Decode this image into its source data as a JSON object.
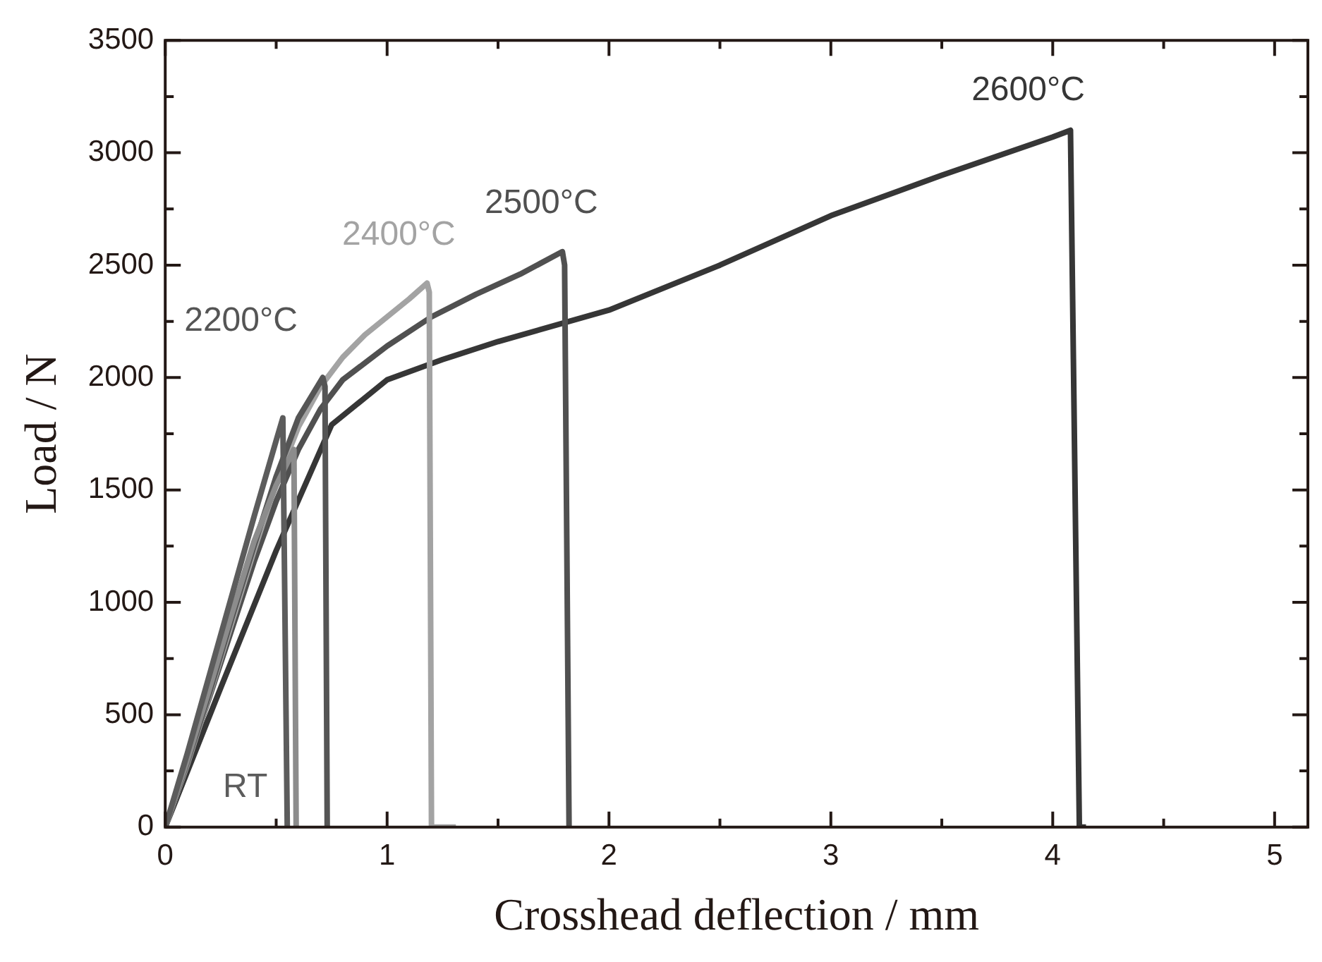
{
  "chart_data": {
    "type": "line",
    "xlabel": "Crosshead deflection / mm",
    "ylabel": "Load / N",
    "xlim": [
      0,
      5.15
    ],
    "ylim": [
      0,
      3500
    ],
    "xticks": [
      0,
      {
        "value": 0.5,
        "label": null
      },
      1,
      {
        "value": 1.5,
        "label": null
      },
      2,
      {
        "value": 2.5,
        "label": null
      },
      3,
      {
        "value": 3.5,
        "label": null
      },
      4,
      {
        "value": 4.5,
        "label": null
      },
      5
    ],
    "yticks": [
      0,
      {
        "value": 250,
        "label": null
      },
      500,
      {
        "value": 750,
        "label": null
      },
      1000,
      {
        "value": 1250,
        "label": null
      },
      1500,
      {
        "value": 1750,
        "label": null
      },
      2000,
      {
        "value": 2250,
        "label": null
      },
      2500,
      {
        "value": 2750,
        "label": null
      },
      3000,
      {
        "value": 3250,
        "label": null
      },
      3500
    ],
    "grid": false,
    "legend": false,
    "marker": "none",
    "line_style": "solid",
    "series": [
      {
        "name": "RT",
        "color": "#5c5c5c",
        "x": [
          0,
          0.1,
          0.2,
          0.3,
          0.4,
          0.5,
          0.53,
          0.55
        ],
        "values": [
          0,
          330,
          680,
          1030,
          1380,
          1720,
          1820,
          0
        ]
      },
      {
        "color": "#8c8c8c",
        "x": [
          0,
          0.1,
          0.2,
          0.3,
          0.4,
          0.5,
          0.58,
          0.59
        ],
        "values": [
          0,
          300,
          620,
          950,
          1270,
          1520,
          1680,
          0
        ]
      },
      {
        "name": "2200°C",
        "color": "#555555",
        "x": [
          0,
          0.1,
          0.2,
          0.3,
          0.4,
          0.5,
          0.6,
          0.71,
          0.72,
          0.73
        ],
        "values": [
          0,
          290,
          600,
          930,
          1250,
          1560,
          1820,
          2000,
          1960,
          0
        ]
      },
      {
        "name": "2400°C",
        "color": "#a3a3a3",
        "x": [
          0,
          0.1,
          0.2,
          0.3,
          0.4,
          0.5,
          0.6,
          0.7,
          0.8,
          0.9,
          1.0,
          1.1,
          1.18,
          1.19,
          1.2,
          1.31
        ],
        "values": [
          0,
          280,
          590,
          910,
          1230,
          1530,
          1780,
          1960,
          2090,
          2190,
          2270,
          2350,
          2420,
          2380,
          0,
          0
        ]
      },
      {
        "name": "2500°C",
        "color": "#505050",
        "x": [
          0,
          0.2,
          0.4,
          0.5,
          0.6,
          0.7,
          0.8,
          1.0,
          1.2,
          1.4,
          1.6,
          1.79,
          1.8,
          1.82
        ],
        "values": [
          0,
          580,
          1180,
          1450,
          1680,
          1860,
          1990,
          2140,
          2270,
          2370,
          2460,
          2560,
          2500,
          0
        ]
      },
      {
        "name": "2600°C",
        "color": "#363636",
        "x": [
          0,
          0.25,
          0.5,
          0.75,
          1.0,
          1.25,
          1.5,
          2.0,
          2.5,
          3.0,
          3.5,
          4.0,
          4.08,
          4.12,
          4.15
        ],
        "values": [
          0,
          620,
          1230,
          1790,
          1990,
          2080,
          2160,
          2300,
          2500,
          2720,
          2900,
          3070,
          3100,
          0,
          0
        ]
      }
    ]
  }
}
